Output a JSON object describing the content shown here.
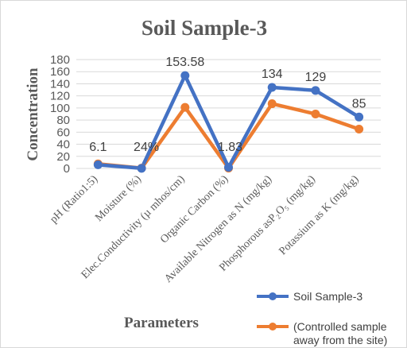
{
  "chart_data": {
    "type": "line",
    "title": "Soil Sample-3",
    "xlabel": "Parameters",
    "ylabel": "Concentration",
    "ylim": [
      0,
      180
    ],
    "yticks": [
      0,
      20,
      40,
      60,
      80,
      100,
      120,
      140,
      160,
      180
    ],
    "grid": true,
    "legend_position": "bottom-right",
    "categories": [
      "pH (Ratio1:5)",
      "Moisture (%)",
      "Elec.Conductivity (µ mhos/cm)",
      "Organic Carbon (%)",
      "Available Nitrogen as N (mg/kg)",
      "Phosphorous asP₂O₅ (mg/kg)",
      "Potassium as K (mg/kg)"
    ],
    "series": [
      {
        "name": "Soil Sample-3",
        "color": "#4472C4",
        "values": [
          6.1,
          0.24,
          153.58,
          1.83,
          134,
          129,
          85
        ],
        "data_labels": [
          "6.1",
          "24%",
          "153.58",
          "1.83",
          "134",
          "129",
          "85"
        ]
      },
      {
        "name": "(Controlled sample away from the site)",
        "legend_lines": [
          "(Controlled sample",
          "away from the site)"
        ],
        "color": "#ED7D31",
        "values": [
          7.5,
          0.5,
          101,
          0.5,
          107,
          90,
          65
        ]
      }
    ]
  }
}
